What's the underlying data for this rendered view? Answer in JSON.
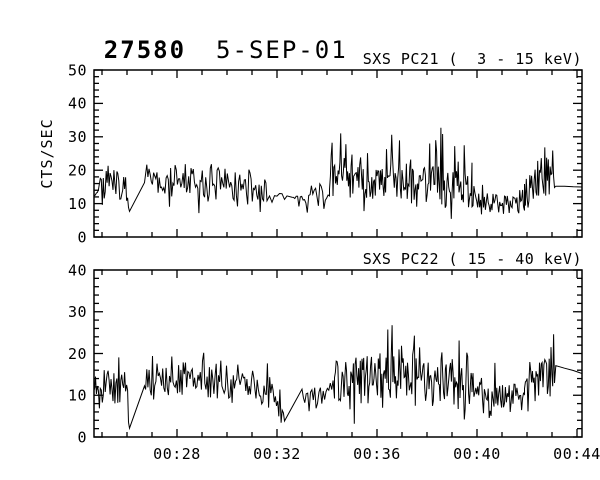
{
  "header": {
    "observation_id": "27580",
    "date": "5-SEP-01"
  },
  "colors": {
    "background": "#ffffff",
    "ink": "#000000"
  },
  "chart_data": [
    {
      "type": "line",
      "title": "SXS PC21 (  3 - 15 keV)",
      "ylabel": "CTS/SEC",
      "ylim": [
        0,
        50
      ],
      "yticks": [
        0,
        10,
        20,
        30,
        40,
        50
      ],
      "y_minor_step": 2,
      "x_minutes_range": [
        24.68,
        44.2
      ],
      "xticks": [
        {
          "label": "00:28",
          "minutes": 28
        },
        {
          "label": "00:32",
          "minutes": 32
        },
        {
          "label": "00:36",
          "minutes": 36
        },
        {
          "label": "00:40",
          "minutes": 40
        },
        {
          "label": "00:44",
          "minutes": 44
        }
      ],
      "x_minor_step_minutes": 1,
      "grid": false,
      "legend": "none",
      "line_color": "#000000",
      "seed": 7,
      "segments": [
        {
          "points_per_min": 26,
          "amp": 4.5,
          "spike_prob": 0.06,
          "spike_amp": 7,
          "envelope": [
            [
              24.7,
              15
            ],
            [
              25.3,
              16
            ],
            [
              25.9,
              14
            ],
            [
              26.1,
              6
            ]
          ]
        },
        {
          "points_per_min": 22,
          "amp": 4.0,
          "spike_prob": 0.05,
          "spike_amp": 7,
          "envelope": [
            [
              26.7,
              17
            ],
            [
              27.6,
              16
            ],
            [
              29.0,
              17
            ],
            [
              30.5,
              15
            ],
            [
              31.6,
              13
            ]
          ]
        },
        {
          "points_per_min": 10,
          "amp": 1.2,
          "spike_prob": 0.0,
          "spike_amp": 0,
          "envelope": [
            [
              31.7,
              12.5
            ],
            [
              32.4,
              12
            ]
          ]
        },
        {
          "points_per_min": 18,
          "amp": 3.2,
          "spike_prob": 0.05,
          "spike_amp": 6,
          "envelope": [
            [
              32.6,
              11
            ],
            [
              33.4,
              12
            ],
            [
              34.1,
              13
            ]
          ]
        },
        {
          "points_per_min": 29,
          "amp": 5.0,
          "spike_prob": 0.09,
          "spike_amp": 11,
          "envelope": [
            [
              34.1,
              16
            ],
            [
              34.6,
              19
            ],
            [
              35.4,
              17
            ],
            [
              36.4,
              18
            ],
            [
              37.4,
              17
            ],
            [
              38.4,
              17
            ],
            [
              39.3,
              15
            ],
            [
              39.8,
              13
            ]
          ]
        },
        {
          "points_per_min": 26,
          "amp": 3.3,
          "spike_prob": 0.04,
          "spike_amp": 6,
          "envelope": [
            [
              39.8,
              12
            ],
            [
              40.6,
              10
            ],
            [
              41.4,
              10
            ],
            [
              41.9,
              11
            ]
          ]
        },
        {
          "points_per_min": 28,
          "amp": 4.8,
          "spike_prob": 0.08,
          "spike_amp": 9,
          "envelope": [
            [
              41.9,
              13
            ],
            [
              42.5,
              16
            ],
            [
              43.1,
              18
            ]
          ]
        },
        {
          "points_per_min": 3,
          "amp": 0.1,
          "spike_prob": 0.0,
          "spike_amp": 0,
          "envelope": [
            [
              43.15,
              15.3
            ],
            [
              44.2,
              15.0
            ]
          ]
        }
      ]
    },
    {
      "type": "line",
      "title": "SXS PC22 ( 15 - 40 keV)",
      "ylabel": "",
      "ylim": [
        0,
        40
      ],
      "yticks": [
        0,
        10,
        20,
        30,
        40
      ],
      "y_minor_step": 2,
      "x_minutes_range": [
        24.68,
        44.2
      ],
      "xticks": [
        {
          "label": "00:28",
          "minutes": 28
        },
        {
          "label": "00:32",
          "minutes": 32
        },
        {
          "label": "00:36",
          "minutes": 36
        },
        {
          "label": "00:40",
          "minutes": 40
        },
        {
          "label": "00:44",
          "minutes": 44
        }
      ],
      "x_minor_step_minutes": 1,
      "grid": false,
      "legend": "none",
      "line_color": "#000000",
      "seed": 13,
      "segments": [
        {
          "points_per_min": 26,
          "amp": 4.0,
          "spike_prob": 0.05,
          "spike_amp": 6,
          "envelope": [
            [
              24.7,
              13
            ],
            [
              25.4,
              12
            ],
            [
              26.0,
              11
            ],
            [
              26.1,
              4
            ]
          ]
        },
        {
          "points_per_min": 22,
          "amp": 3.5,
          "spike_prob": 0.05,
          "spike_amp": 6,
          "envelope": [
            [
              26.7,
              13
            ],
            [
              27.8,
              14
            ],
            [
              29.2,
              14
            ],
            [
              30.4,
              13
            ],
            [
              31.4,
              11
            ],
            [
              32.2,
              8
            ],
            [
              32.3,
              5
            ]
          ]
        },
        {
          "points_per_min": 18,
          "amp": 2.8,
          "spike_prob": 0.04,
          "spike_amp": 5,
          "envelope": [
            [
              33.0,
              10
            ],
            [
              34.0,
              11
            ],
            [
              34.3,
              12
            ]
          ]
        },
        {
          "points_per_min": 29,
          "amp": 4.3,
          "spike_prob": 0.08,
          "spike_amp": 9,
          "envelope": [
            [
              34.3,
              14
            ],
            [
              35.3,
              15
            ],
            [
              36.3,
              14
            ],
            [
              37.3,
              15
            ],
            [
              38.3,
              14
            ],
            [
              39.8,
              12
            ]
          ]
        },
        {
          "points_per_min": 26,
          "amp": 3.2,
          "spike_prob": 0.04,
          "spike_amp": 6,
          "envelope": [
            [
              39.8,
              11
            ],
            [
              40.8,
              9
            ],
            [
              41.9,
              10
            ]
          ]
        },
        {
          "points_per_min": 28,
          "amp": 4.2,
          "spike_prob": 0.07,
          "spike_amp": 8,
          "envelope": [
            [
              41.9,
              12
            ],
            [
              42.6,
              14
            ],
            [
              43.1,
              15
            ]
          ]
        },
        {
          "points_per_min": 3,
          "amp": 0.1,
          "spike_prob": 0.0,
          "spike_amp": 0,
          "envelope": [
            [
              43.15,
              17.0
            ],
            [
              44.2,
              15.2
            ]
          ]
        }
      ]
    }
  ]
}
